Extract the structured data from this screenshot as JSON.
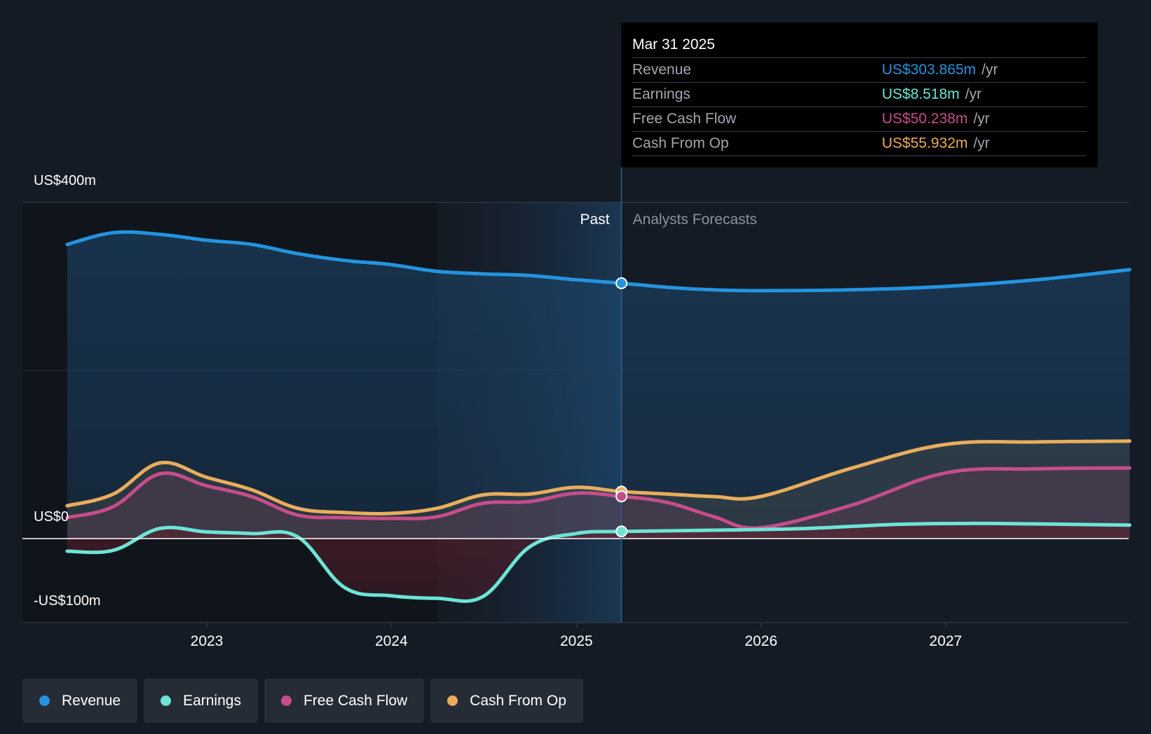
{
  "chart_data": {
    "type": "area",
    "y_labels": [
      "US$400m",
      "US$0",
      "-US$100m"
    ],
    "ylim": [
      -100,
      400
    ],
    "x_ticks": [
      "2023",
      "2024",
      "2025",
      "2026",
      "2027"
    ],
    "past_label": "Past",
    "forecast_label": "Analysts Forecasts",
    "divider_date": "2025-03-31",
    "grid": true,
    "series": [
      {
        "name": "Revenue",
        "color": "#2394df",
        "points": [
          [
            "2022-03-31",
            350
          ],
          [
            "2022-06-30",
            364
          ],
          [
            "2022-09-30",
            362
          ],
          [
            "2022-12-31",
            355
          ],
          [
            "2023-03-31",
            350
          ],
          [
            "2023-06-30",
            339
          ],
          [
            "2023-09-30",
            331
          ],
          [
            "2023-12-31",
            326
          ],
          [
            "2024-03-31",
            318
          ],
          [
            "2024-06-30",
            315
          ],
          [
            "2024-09-30",
            313
          ],
          [
            "2024-12-31",
            308
          ],
          [
            "2025-03-31",
            303.865
          ],
          [
            "2025-06-30",
            299
          ],
          [
            "2025-09-30",
            296
          ],
          [
            "2025-12-31",
            295
          ],
          [
            "2026-06-30",
            296
          ],
          [
            "2026-12-31",
            300
          ],
          [
            "2027-06-30",
            308
          ],
          [
            "2027-12-31",
            320
          ]
        ]
      },
      {
        "name": "Earnings",
        "color": "#6ce5d6",
        "points": [
          [
            "2022-03-31",
            -15
          ],
          [
            "2022-06-30",
            -14
          ],
          [
            "2022-09-30",
            12
          ],
          [
            "2022-12-31",
            8
          ],
          [
            "2023-03-31",
            6
          ],
          [
            "2023-06-30",
            2
          ],
          [
            "2023-09-30",
            -58
          ],
          [
            "2023-12-31",
            -68
          ],
          [
            "2024-03-31",
            -71
          ],
          [
            "2024-06-30",
            -69
          ],
          [
            "2024-09-30",
            -10
          ],
          [
            "2024-12-31",
            6
          ],
          [
            "2025-03-31",
            8.518
          ],
          [
            "2025-09-30",
            10
          ],
          [
            "2026-03-31",
            12
          ],
          [
            "2026-09-30",
            17
          ],
          [
            "2027-03-31",
            18
          ],
          [
            "2027-12-31",
            16
          ]
        ]
      },
      {
        "name": "Free Cash Flow",
        "color": "#c64d8a",
        "points": [
          [
            "2022-03-31",
            25
          ],
          [
            "2022-06-30",
            38
          ],
          [
            "2022-09-30",
            77
          ],
          [
            "2022-12-31",
            63
          ],
          [
            "2023-03-31",
            50
          ],
          [
            "2023-06-30",
            28
          ],
          [
            "2023-09-30",
            25
          ],
          [
            "2023-12-31",
            24
          ],
          [
            "2024-03-31",
            26
          ],
          [
            "2024-06-30",
            42
          ],
          [
            "2024-09-30",
            44
          ],
          [
            "2024-12-31",
            54
          ],
          [
            "2025-03-31",
            50.238
          ],
          [
            "2025-06-30",
            43
          ],
          [
            "2025-09-30",
            26
          ],
          [
            "2025-12-31",
            13
          ],
          [
            "2026-06-30",
            40
          ],
          [
            "2026-12-31",
            78
          ],
          [
            "2027-06-30",
            83
          ],
          [
            "2027-12-31",
            84
          ]
        ]
      },
      {
        "name": "Cash From Op",
        "color": "#e9ad5c",
        "points": [
          [
            "2022-03-31",
            39
          ],
          [
            "2022-06-30",
            53
          ],
          [
            "2022-09-30",
            90
          ],
          [
            "2022-12-31",
            73
          ],
          [
            "2023-03-31",
            58
          ],
          [
            "2023-06-30",
            36
          ],
          [
            "2023-09-30",
            31
          ],
          [
            "2023-12-31",
            30
          ],
          [
            "2024-03-31",
            36
          ],
          [
            "2024-06-30",
            52
          ],
          [
            "2024-09-30",
            53
          ],
          [
            "2024-12-31",
            61
          ],
          [
            "2025-03-31",
            55.932
          ],
          [
            "2025-06-30",
            53
          ],
          [
            "2025-09-30",
            50
          ],
          [
            "2025-12-31",
            50
          ],
          [
            "2026-06-30",
            84
          ],
          [
            "2026-12-31",
            112
          ],
          [
            "2027-06-30",
            115
          ],
          [
            "2027-12-31",
            116
          ]
        ]
      }
    ]
  },
  "tooltip": {
    "date": "Mar 31 2025",
    "rows": [
      {
        "label": "Revenue",
        "value": "US$303.865m",
        "unit": "/yr",
        "color": "#2394df"
      },
      {
        "label": "Earnings",
        "value": "US$8.518m",
        "unit": "/yr",
        "color": "#6ce5d6"
      },
      {
        "label": "Free Cash Flow",
        "value": "US$50.238m",
        "unit": "/yr",
        "color": "#c64d8a"
      },
      {
        "label": "Cash From Op",
        "value": "US$55.932m",
        "unit": "/yr",
        "color": "#e9ad5c"
      }
    ]
  },
  "legend": [
    {
      "label": "Revenue",
      "color": "#2394df"
    },
    {
      "label": "Earnings",
      "color": "#6ce5d6"
    },
    {
      "label": "Free Cash Flow",
      "color": "#c64d8a"
    },
    {
      "label": "Cash From Op",
      "color": "#e9ad5c"
    }
  ]
}
